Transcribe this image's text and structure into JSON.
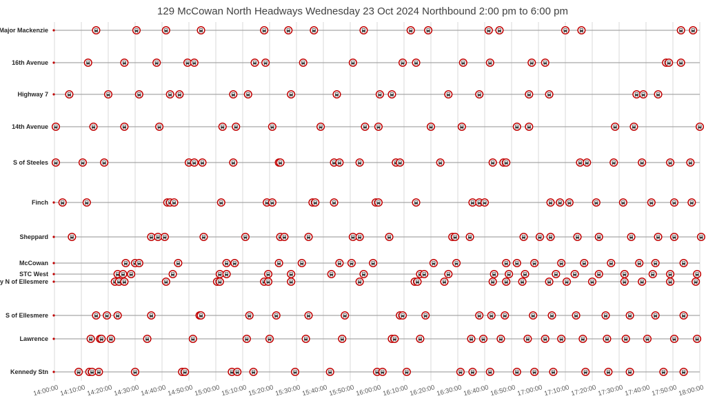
{
  "chart_data": {
    "type": "scatter",
    "title": "129 McCowan North Headways Wednesday 23 Oct 2024 Northbound 2:00 pm to 6:00 pm",
    "x_axis": {
      "ticks": [
        "14:00:00",
        "14:10:00",
        "14:20:00",
        "14:30:00",
        "14:40:00",
        "14:50:00",
        "15:00:00",
        "15:10:00",
        "15:20:00",
        "15:30:00",
        "15:40:00",
        "15:50:00",
        "16:00:00",
        "16:10:00",
        "16:20:00",
        "16:30:00",
        "16:40:00",
        "16:50:00",
        "17:00:00",
        "17:10:00",
        "17:20:00",
        "17:30:00",
        "17:40:00",
        "17:50:00",
        "18:00:00"
      ],
      "range_minutes": [
        0,
        240
      ]
    },
    "grid": true,
    "marker": "bus-icon",
    "colors": {
      "marker_ring": "#c00000",
      "track": "#a6a6a6",
      "grid": "#d9d9d9",
      "axis_start_dot": "#c00000"
    },
    "stops": [
      {
        "name": "S of Major Mackenzie",
        "times": [
          15.5,
          30.5,
          41.5,
          54.5,
          78,
          87,
          96.5,
          115,
          132.5,
          139,
          161.5,
          165.5,
          190,
          196,
          233,
          237.5
        ]
      },
      {
        "name": "16th Avenue",
        "times": [
          12.5,
          26,
          38,
          49.5,
          52,
          74.5,
          78.5,
          92.5,
          111,
          129.5,
          134.5,
          152,
          162,
          177.5,
          182.5,
          227.5,
          228.5,
          233
        ]
      },
      {
        "name": "Highway 7",
        "times": [
          5.5,
          20,
          31.5,
          43,
          46.5,
          66.5,
          72,
          88,
          105,
          121,
          125.5,
          146.5,
          158,
          176.5,
          184,
          216.5,
          219,
          224.5
        ]
      },
      {
        "name": "14th Avenue",
        "times": [
          0.5,
          14.5,
          26,
          39,
          62.5,
          67.5,
          81,
          99,
          115.5,
          120.5,
          140,
          151.5,
          172,
          176.5,
          208.5,
          215.5,
          240
        ]
      },
      {
        "name": "S of Steeles",
        "times": [
          0.5,
          10.5,
          18.5,
          50,
          52,
          55,
          66.5,
          83.5,
          84,
          104,
          106,
          113.5,
          127,
          128.5,
          143.5,
          163,
          167,
          168,
          195.5,
          198,
          208,
          218.5,
          229,
          236.5
        ]
      },
      {
        "name": "Finch",
        "times": [
          3,
          12,
          42,
          43,
          44.5,
          62,
          79,
          81,
          96,
          97,
          104,
          119.5,
          120.5,
          134.5,
          155.5,
          158,
          160,
          184.5,
          188,
          191.5,
          201.5,
          211.5,
          222,
          230.5,
          237
        ]
      },
      {
        "name": "Sheppard",
        "times": [
          6.5,
          36,
          38.5,
          41,
          55.5,
          71,
          84,
          85.5,
          94.5,
          111,
          113.5,
          124.5,
          148,
          149,
          154.5,
          174.5,
          180.5,
          184.5,
          194.5,
          202.5,
          214.5,
          224.5,
          230.5,
          240.5
        ]
      },
      {
        "name": "McCowan",
        "times": [
          26.5,
          30,
          31.5,
          46,
          64,
          67,
          83.5,
          92,
          106,
          110.5,
          118.5,
          141,
          149.5,
          168,
          172,
          178.5,
          188.5,
          197,
          207,
          217.5,
          223.5,
          234
        ]
      },
      {
        "name": "STC West",
        "times": [
          23.5,
          25.5,
          28.5,
          44,
          61.5,
          64,
          79.5,
          88,
          103,
          115,
          136,
          137.5,
          146.5,
          163.5,
          169,
          175,
          186.5,
          193.5,
          202.5,
          212,
          222.5,
          229,
          239
        ]
      },
      {
        "name": "Brimley N of Ellesmere",
        "times": [
          22.5,
          24,
          26,
          41.5,
          60.5,
          61.5,
          78,
          79.5,
          88,
          113.5,
          134,
          135,
          145,
          163,
          168,
          174,
          184,
          190.5,
          200,
          212,
          218.5,
          229,
          238.5
        ]
      },
      {
        "name": "S of Ellesmere",
        "times": [
          15.5,
          19.5,
          23.5,
          36,
          54,
          54.5,
          72.5,
          82.5,
          94.5,
          108,
          128.5,
          129.5,
          138,
          158,
          162.5,
          167.5,
          178,
          185,
          194,
          205,
          214,
          223.5,
          234
        ]
      },
      {
        "name": "Lawrence",
        "times": [
          13.5,
          17,
          17.5,
          21,
          34.5,
          51.5,
          71.5,
          80,
          93.5,
          107,
          125.5,
          126.5,
          136,
          155,
          159.5,
          166,
          176,
          182.5,
          188.5,
          196.5,
          205.5,
          212.5,
          220.5,
          230.5,
          239
        ]
      },
      {
        "name": "Kennedy Stn",
        "times": [
          9,
          13,
          14,
          16.5,
          30,
          47.5,
          48.5,
          66,
          68,
          74,
          89.5,
          102.5,
          120,
          122,
          131,
          151,
          155.5,
          162,
          172,
          178.5,
          185.5,
          197.5,
          206,
          214,
          226.5,
          234
        ]
      }
    ]
  }
}
